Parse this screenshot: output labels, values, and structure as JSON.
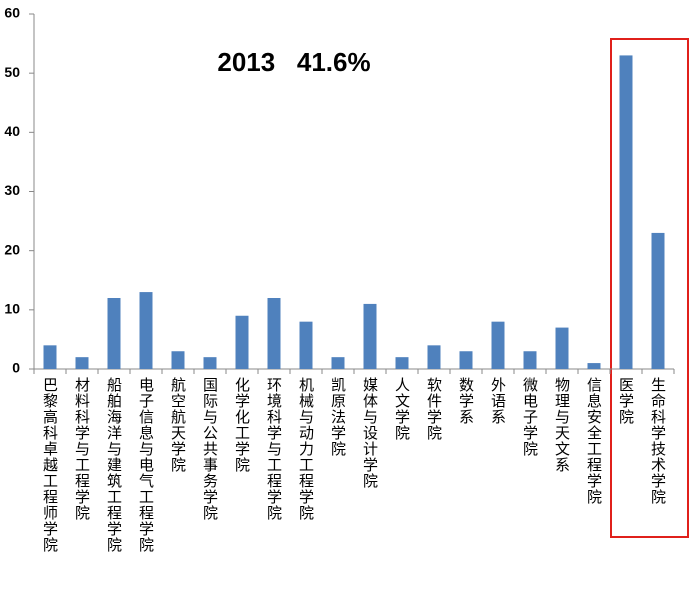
{
  "chart_data": {
    "type": "bar",
    "annotation": "2013   41.6%",
    "categories": [
      "巴黎高科卓越工程师学院",
      "材料科学与工程学院",
      "船舶海洋与建筑工程学院",
      "电子信息与电气工程学院",
      "航空航天学院",
      "国际与公共事务学院",
      "化学化工学院",
      "环境科学与工程学院",
      "机械与动力工程学院",
      "凯原法学院",
      "媒体与设计学院",
      "人文学院",
      "软件学院",
      "数学系",
      "外语系",
      "微电子学院",
      "物理与天文系",
      "信息安全工程学院",
      "医学院",
      "生命科学技术学院"
    ],
    "values": [
      4,
      2,
      12,
      13,
      3,
      2,
      9,
      12,
      8,
      2,
      11,
      2,
      4,
      3,
      8,
      3,
      7,
      1,
      53,
      23
    ],
    "color": "#4f81bd",
    "ylim": [
      0,
      60
    ],
    "yticks": [
      0,
      10,
      20,
      30,
      40,
      50,
      60
    ],
    "grid": false
  }
}
